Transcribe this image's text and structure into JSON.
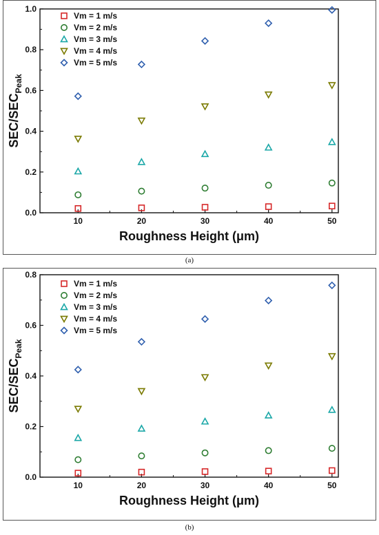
{
  "figure": {
    "captions": [
      "(a)",
      "(b)"
    ]
  },
  "chart_data": [
    {
      "type": "scatter",
      "panel": "(a)",
      "xlabel": "Roughness Height (μm)",
      "ylabel_main": "SEC/SEC",
      "ylabel_sub": "Peak",
      "x": [
        10,
        20,
        30,
        40,
        50
      ],
      "xticks": [
        "10",
        "20",
        "30",
        "40",
        "50"
      ],
      "xlim": [
        4,
        51
      ],
      "ylim": [
        0,
        1.0
      ],
      "yticks": [
        "0.0",
        "0.2",
        "0.4",
        "0.6",
        "0.8",
        "1.0"
      ],
      "legend_position": "top-left",
      "grid": false,
      "series": [
        {
          "name": "Vm = 1 m/s",
          "marker": "square",
          "color": "#d62728",
          "values": [
            0.021,
            0.024,
            0.027,
            0.03,
            0.033
          ]
        },
        {
          "name": "Vm = 2 m/s",
          "marker": "circle",
          "color": "#2e7d32",
          "values": [
            0.088,
            0.106,
            0.121,
            0.135,
            0.146
          ]
        },
        {
          "name": "Vm = 3 m/s",
          "marker": "triangle-up",
          "color": "#1aa7a7",
          "values": [
            0.203,
            0.249,
            0.288,
            0.32,
            0.347
          ]
        },
        {
          "name": "Vm = 4 m/s",
          "marker": "triangle-down",
          "color": "#7a7a00",
          "values": [
            0.363,
            0.452,
            0.522,
            0.58,
            0.626
          ]
        },
        {
          "name": "Vm = 5 m/s",
          "marker": "diamond",
          "color": "#2f5fae",
          "values": [
            0.572,
            0.728,
            0.843,
            0.93,
            0.995
          ]
        }
      ]
    },
    {
      "type": "scatter",
      "panel": "(b)",
      "xlabel": "Roughness Height (μm)",
      "ylabel_main": "SEC/SEC",
      "ylabel_sub": "Peak",
      "x": [
        10,
        20,
        30,
        40,
        50
      ],
      "xticks": [
        "10",
        "20",
        "30",
        "40",
        "50"
      ],
      "xlim": [
        4,
        51
      ],
      "ylim": [
        0,
        0.8
      ],
      "yticks": [
        "0.0",
        "0.2",
        "0.4",
        "0.6",
        "0.8"
      ],
      "legend_position": "top-left",
      "grid": false,
      "series": [
        {
          "name": "Vm = 1 m/s",
          "marker": "square",
          "color": "#d62728",
          "values": [
            0.016,
            0.02,
            0.022,
            0.024,
            0.026
          ]
        },
        {
          "name": "Vm = 2 m/s",
          "marker": "circle",
          "color": "#2e7d32",
          "values": [
            0.069,
            0.084,
            0.096,
            0.105,
            0.114
          ]
        },
        {
          "name": "Vm = 3 m/s",
          "marker": "triangle-up",
          "color": "#1aa7a7",
          "values": [
            0.155,
            0.192,
            0.22,
            0.244,
            0.266
          ]
        },
        {
          "name": "Vm = 4 m/s",
          "marker": "triangle-down",
          "color": "#7a7a00",
          "values": [
            0.27,
            0.34,
            0.395,
            0.441,
            0.478
          ]
        },
        {
          "name": "Vm = 5 m/s",
          "marker": "diamond",
          "color": "#2f5fae",
          "values": [
            0.425,
            0.535,
            0.625,
            0.698,
            0.758
          ]
        }
      ]
    }
  ]
}
